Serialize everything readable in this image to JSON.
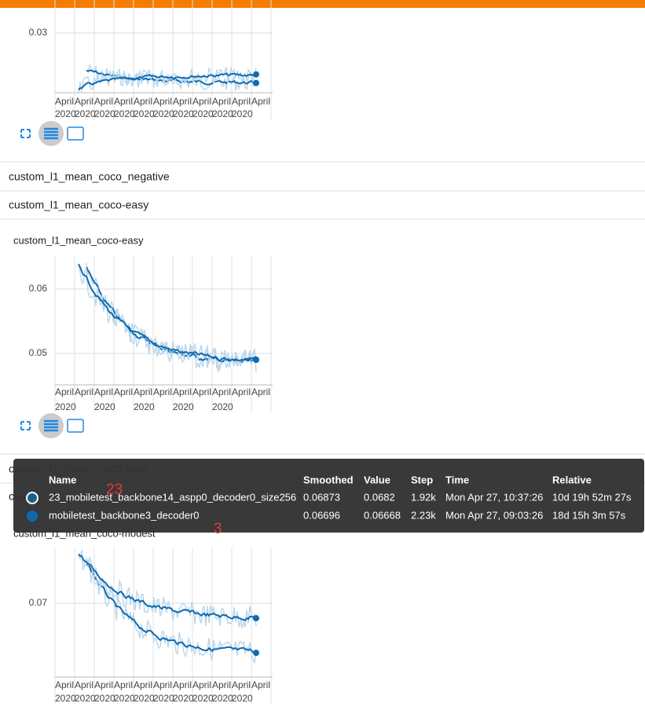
{
  "cards": [
    {
      "y_ticks": [
        "0.03"
      ],
      "x_ticks": [
        "April",
        "April",
        "April",
        "April",
        "April",
        "April",
        "April",
        "April",
        "April",
        "April",
        "April"
      ],
      "x_years": [
        "2020",
        "2020",
        "2020",
        "2020",
        "2020",
        "2020",
        "2020",
        "2020",
        "2020",
        "2020"
      ]
    },
    {
      "title": "custom_l1_mean_coco-easy",
      "y_ticks": [
        "0.06",
        "0.05"
      ],
      "x_ticks": [
        "April",
        "April",
        "April",
        "April",
        "April",
        "April",
        "April",
        "April",
        "April",
        "April",
        "April"
      ],
      "x_years": [
        "2020",
        "2020",
        "2020",
        "2020",
        "2020"
      ]
    },
    {
      "title": "custom_l1_mean_coco-modest",
      "y_ticks": [
        "0.07"
      ],
      "x_ticks": [
        "April",
        "April",
        "April",
        "April",
        "April",
        "April",
        "April",
        "April",
        "April",
        "April",
        "April"
      ],
      "x_years": [
        "2020",
        "2020",
        "2020",
        "2020",
        "2020",
        "2020",
        "2020",
        "2020",
        "2020",
        "2020"
      ]
    }
  ],
  "sections": [
    "custom_l1_mean_coco_negative",
    "custom_l1_mean_coco-easy",
    "custom_l1_mean_coco-hard",
    "custom_l1_mean_coco-modest"
  ],
  "tooltip": {
    "columns": [
      "Name",
      "Smoothed",
      "Value",
      "Step",
      "Time",
      "Relative"
    ],
    "rows": [
      [
        "23_mobiletest_backbone14_aspp0_decoder0_size256",
        "0.06873",
        "0.0682",
        "1.92k",
        "Mon Apr 27, 10:37:26",
        "10d 19h 52m 27s"
      ],
      [
        "mobiletest_backbone3_decoder0",
        "0.06696",
        "0.06668",
        "2.23k",
        "Mon Apr 27, 09:03:26",
        "18d 15h 3m 57s"
      ]
    ]
  },
  "annotations": [
    "23",
    "3"
  ]
}
